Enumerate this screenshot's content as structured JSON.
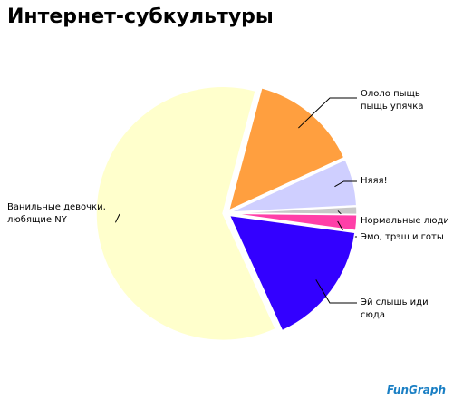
{
  "chart_data": {
    "type": "pie",
    "title": "Интернет-субкультуры",
    "categories": [
      "Ололо пыщь\nпыщь упячка",
      "Няяя!",
      "Нормальные люди",
      "Эмо, трэш и готы",
      "Эй слышь иди сюда",
      "Ванильные девочки,\nлюбящие NY"
    ],
    "values": [
      14,
      6,
      1,
      2,
      16,
      61
    ],
    "colors": [
      "#ff9f3f",
      "#cfcfff",
      "#c8c8c8",
      "#ff3fa8",
      "#3300ff",
      "#ffffcc"
    ],
    "watermark": "FunGraph"
  }
}
